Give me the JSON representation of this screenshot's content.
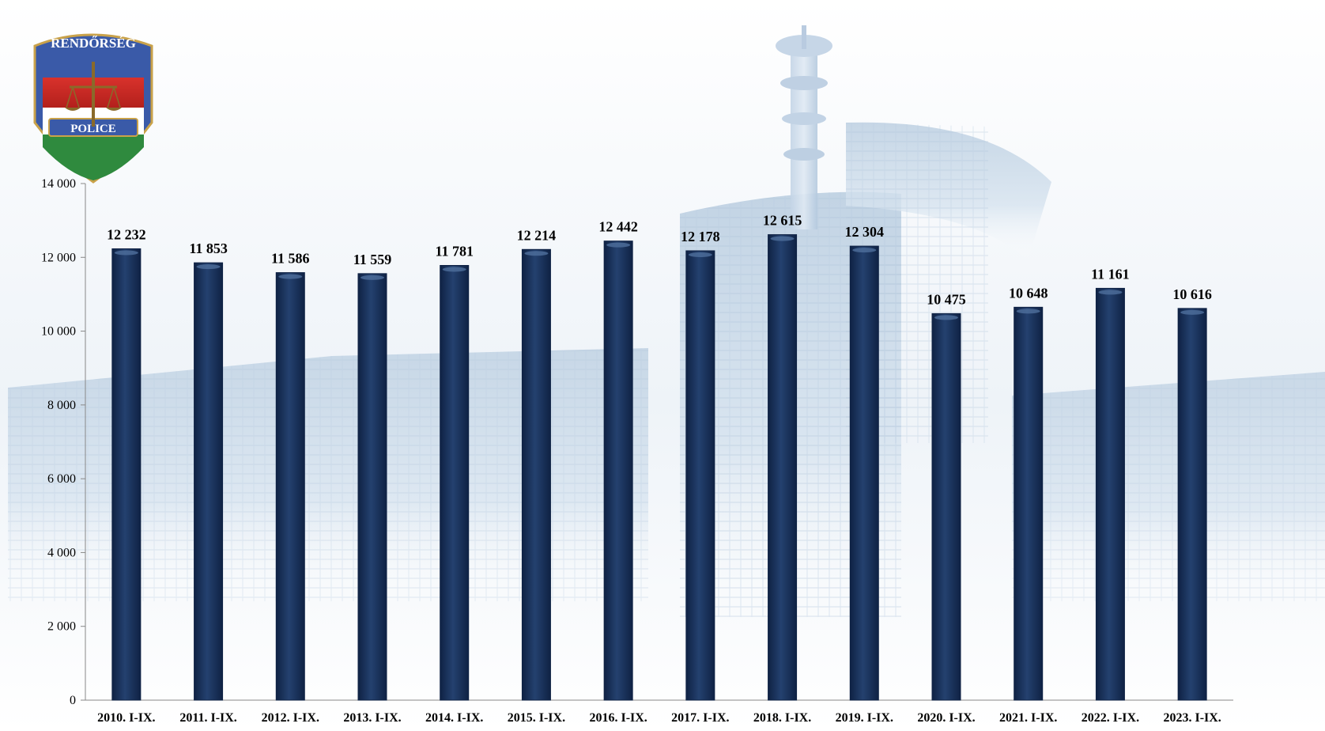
{
  "logo": {
    "top_text": "RENDŐRSÉG",
    "bottom_text": "POLICE"
  },
  "colors": {
    "bar": "#1f3a66",
    "bar_edge": "#0f2244",
    "bar_highlight": "#4f6f9c",
    "axis": "#888888",
    "background_building": "#c9d9e8"
  },
  "chart_data": {
    "type": "bar",
    "categories": [
      "2010. I-IX.",
      "2011. I-IX.",
      "2012. I-IX.",
      "2013. I-IX.",
      "2014. I-IX.",
      "2015. I-IX.",
      "2016. I-IX.",
      "2017. I-IX.",
      "2018. I-IX.",
      "2019. I-IX.",
      "2020. I-IX.",
      "2021. I-IX.",
      "2022. I-IX.",
      "2023. I-IX."
    ],
    "values": [
      12232,
      11853,
      11586,
      11559,
      11781,
      12214,
      12442,
      12178,
      12615,
      12304,
      10475,
      10648,
      11161,
      10616
    ],
    "value_labels": [
      "12 232",
      "11 853",
      "11 586",
      "11 559",
      "11 781",
      "12 214",
      "12 442",
      "12 178",
      "12 615",
      "12 304",
      "10 475",
      "10 648",
      "11 161",
      "10 616"
    ],
    "yticks": [
      0,
      2000,
      4000,
      6000,
      8000,
      10000,
      12000,
      14000
    ],
    "ytick_labels": [
      "0",
      "2 000",
      "4 000",
      "6 000",
      "8 000",
      "10 000",
      "12 000",
      "14 000"
    ],
    "ylim": [
      0,
      14000
    ],
    "title": "",
    "xlabel": "",
    "ylabel": "",
    "grid": false,
    "legend": "none"
  }
}
